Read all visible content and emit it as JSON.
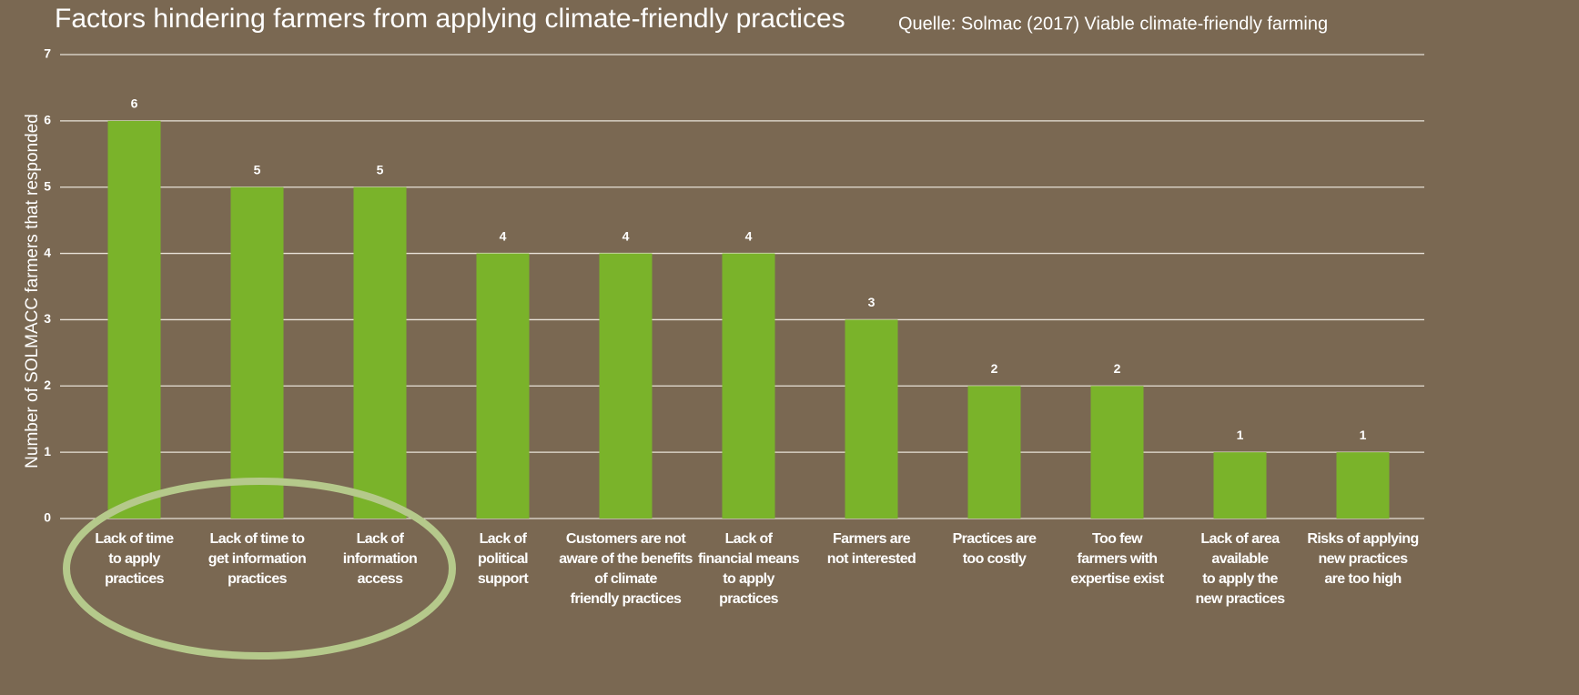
{
  "chart_data": {
    "type": "bar",
    "title": "Factors hindering farmers from applying climate-friendly practices",
    "source": "Quelle: Solmac (2017) Viable climate-friendly farming",
    "y_label": "Number of SOLMACC farmers that responded",
    "categories": [
      "Lack of time\nto apply\npractices",
      "Lack of time to\nget information\npractices",
      "Lack of\ninformation\naccess",
      "Lack of\npolitical\nsupport",
      "Customers are not\naware of the benefits\nof climate\nfriendly practices",
      "Lack of\nfinancial means\nto apply\npractices",
      "Farmers are\nnot interested",
      "Practices are\ntoo costly",
      "Too few\nfarmers with\nexpertise exist",
      "Lack of area\navailable\nto apply the\nnew practices",
      "Risks of applying\nnew practices\nare too high"
    ],
    "values": [
      6,
      5,
      5,
      4,
      4,
      4,
      3,
      2,
      2,
      1,
      1
    ],
    "color": "#7ab32a",
    "ylim": [
      0,
      7
    ],
    "yticks": [
      0,
      1,
      2,
      3,
      4,
      5,
      6,
      7
    ],
    "grid": true
  }
}
